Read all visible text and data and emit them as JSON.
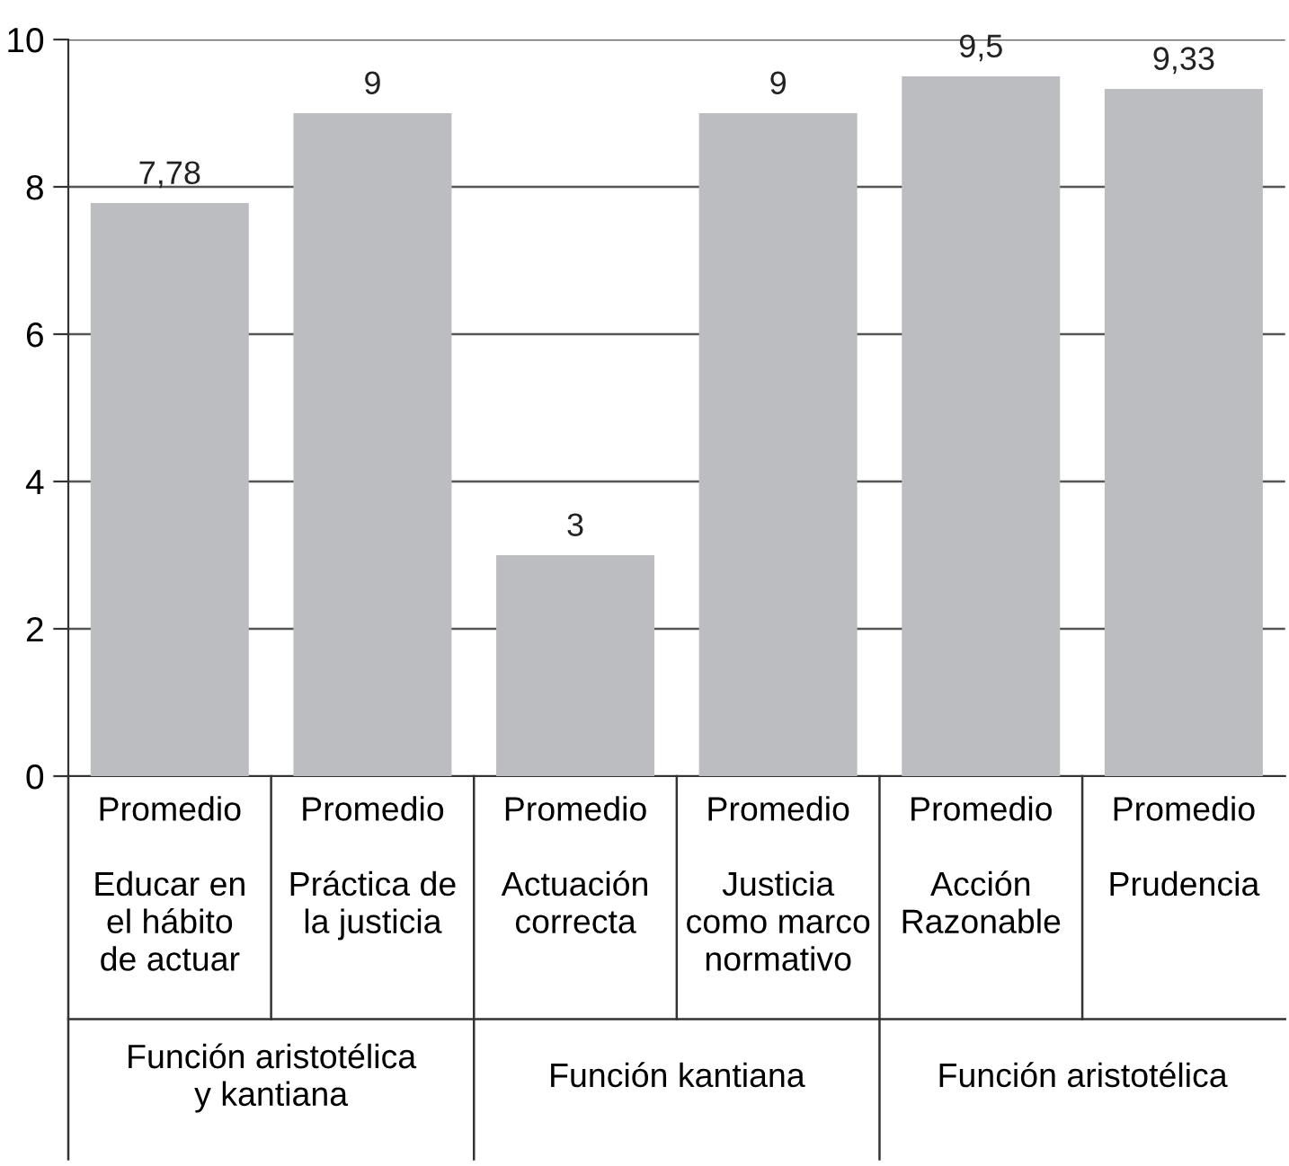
{
  "chart_data": {
    "type": "bar",
    "categories": [
      "Promedio\n\nEducar en\nel hábito\nde actuar",
      "Promedio\n\nPráctica de\nla justicia",
      "Promedio\n\nActuación\ncorrecta",
      "Promedio\n\nJusticia\ncomo marco\nnormativo",
      "Promedio\n\nAcción\nRazonable",
      "Promedio\n\nPrudencia"
    ],
    "values": [
      7.78,
      9,
      3,
      9,
      9.5,
      9.33
    ],
    "value_labels": [
      "7,78",
      "9",
      "3",
      "9",
      "9,5",
      "9,33"
    ],
    "color": "#bcbdc0",
    "ylim": [
      0,
      10
    ],
    "yticks": [
      0,
      2,
      4,
      6,
      8,
      10
    ],
    "grid": "y",
    "annotations": [
      "Función aristotélica\ny kantiana",
      "Función kantiana",
      "Función aristotélica"
    ]
  }
}
